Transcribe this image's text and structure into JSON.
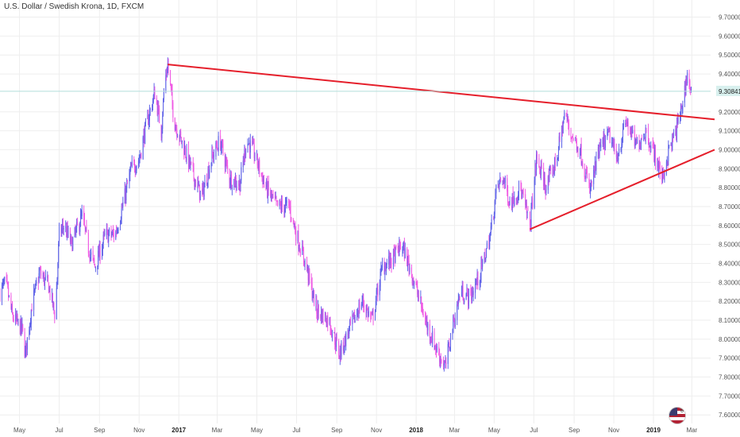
{
  "title": "U.S. Dollar / Swedish Krona, 1D, FXCM",
  "flag_badge": "8",
  "colors": {
    "bull": "#5f63e8",
    "bear": "#f05be4",
    "trendline": "#e51f2b",
    "grid": "#eeeeee",
    "price_line": "#b2dfdb",
    "price_label_bg": "#d8f0ee",
    "axis_text": "#555555"
  },
  "chart_data": {
    "type": "candlestick",
    "x_tick_labels": [
      "May",
      "Jul",
      "Sep",
      "Nov",
      "2017",
      "Mar",
      "May",
      "Jul",
      "Sep",
      "Nov",
      "2018",
      "Mar",
      "May",
      "Jul",
      "Sep",
      "Nov",
      "2019",
      "Mar"
    ],
    "bold_tick_labels": [
      "2017",
      "2018",
      "2019"
    ],
    "y_tick_labels": [
      "9.70000",
      "9.60000",
      "9.50000",
      "9.40000",
      "9.30841",
      "9.20000",
      "9.10000",
      "9.00000",
      "8.90000",
      "8.80000",
      "8.70000",
      "8.60000",
      "8.50000",
      "8.40000",
      "8.30000",
      "8.20000",
      "8.10000",
      "8.00000",
      "7.90000",
      "7.80000",
      "7.70000",
      "7.60000"
    ],
    "ylim": [
      7.58,
      9.74
    ],
    "last_price": "9.30841",
    "price_path": [
      [
        "2016-04-01",
        8.25
      ],
      [
        "2016-04-10",
        8.3
      ],
      [
        "2016-04-20",
        8.12
      ],
      [
        "2016-05-05",
        8.05
      ],
      [
        "2016-05-10",
        7.92
      ],
      [
        "2016-05-20",
        8.18
      ],
      [
        "2016-06-01",
        8.35
      ],
      [
        "2016-06-15",
        8.28
      ],
      [
        "2016-06-25",
        8.12
      ],
      [
        "2016-07-01",
        8.55
      ],
      [
        "2016-07-08",
        8.6
      ],
      [
        "2016-07-20",
        8.5
      ],
      [
        "2016-08-05",
        8.65
      ],
      [
        "2016-08-15",
        8.48
      ],
      [
        "2016-08-25",
        8.38
      ],
      [
        "2016-09-10",
        8.55
      ],
      [
        "2016-09-25",
        8.55
      ],
      [
        "2016-10-05",
        8.68
      ],
      [
        "2016-10-20",
        8.9
      ],
      [
        "2016-11-01",
        8.95
      ],
      [
        "2016-11-10",
        9.1
      ],
      [
        "2016-11-25",
        9.3
      ],
      [
        "2016-12-05",
        9.1
      ],
      [
        "2016-12-10",
        9.35
      ],
      [
        "2016-12-15",
        9.45
      ],
      [
        "2016-12-25",
        9.15
      ],
      [
        "2017-01-10",
        9.0
      ],
      [
        "2017-01-25",
        8.85
      ],
      [
        "2017-02-05",
        8.75
      ],
      [
        "2017-02-20",
        8.95
      ],
      [
        "2017-03-05",
        9.05
      ],
      [
        "2017-03-20",
        8.85
      ],
      [
        "2017-04-05",
        8.82
      ],
      [
        "2017-04-15",
        9.05
      ],
      [
        "2017-04-25",
        9.0
      ],
      [
        "2017-05-15",
        8.8
      ],
      [
        "2017-06-01",
        8.7
      ],
      [
        "2017-06-20",
        8.7
      ],
      [
        "2017-07-01",
        8.55
      ],
      [
        "2017-07-15",
        8.4
      ],
      [
        "2017-08-01",
        8.15
      ],
      [
        "2017-08-20",
        8.1
      ],
      [
        "2017-09-05",
        7.92
      ],
      [
        "2017-09-20",
        8.05
      ],
      [
        "2017-10-10",
        8.2
      ],
      [
        "2017-10-25",
        8.1
      ],
      [
        "2017-11-10",
        8.38
      ],
      [
        "2017-11-25",
        8.42
      ],
      [
        "2017-12-10",
        8.5
      ],
      [
        "2017-12-25",
        8.35
      ],
      [
        "2018-01-15",
        8.1
      ],
      [
        "2018-02-01",
        7.95
      ],
      [
        "2018-02-15",
        7.85
      ],
      [
        "2018-02-25",
        8.05
      ],
      [
        "2018-03-10",
        8.25
      ],
      [
        "2018-03-25",
        8.22
      ],
      [
        "2018-04-10",
        8.35
      ],
      [
        "2018-04-25",
        8.55
      ],
      [
        "2018-05-05",
        8.8
      ],
      [
        "2018-05-15",
        8.85
      ],
      [
        "2018-05-25",
        8.72
      ],
      [
        "2018-06-10",
        8.8
      ],
      [
        "2018-06-25",
        8.6
      ],
      [
        "2018-07-05",
        8.95
      ],
      [
        "2018-07-20",
        8.8
      ],
      [
        "2018-08-05",
        8.95
      ],
      [
        "2018-08-18",
        9.2
      ],
      [
        "2018-08-25",
        9.1
      ],
      [
        "2018-09-10",
        9.0
      ],
      [
        "2018-09-25",
        8.78
      ],
      [
        "2018-10-10",
        9.0
      ],
      [
        "2018-10-25",
        9.08
      ],
      [
        "2018-11-05",
        8.95
      ],
      [
        "2018-11-20",
        9.15
      ],
      [
        "2018-12-05",
        9.02
      ],
      [
        "2018-12-20",
        9.1
      ],
      [
        "2019-01-05",
        8.95
      ],
      [
        "2019-01-15",
        8.85
      ],
      [
        "2019-01-25",
        9.0
      ],
      [
        "2019-02-05",
        9.1
      ],
      [
        "2019-02-15",
        9.25
      ],
      [
        "2019-02-22",
        9.4
      ],
      [
        "2019-02-28",
        9.3
      ]
    ],
    "trendlines": [
      {
        "from": [
          "2016-12-15",
          9.45
        ],
        "to": [
          "2019-04-05",
          9.16
        ]
      },
      {
        "from": [
          "2018-06-25",
          8.58
        ],
        "to": [
          "2019-04-05",
          9.0
        ]
      }
    ]
  }
}
